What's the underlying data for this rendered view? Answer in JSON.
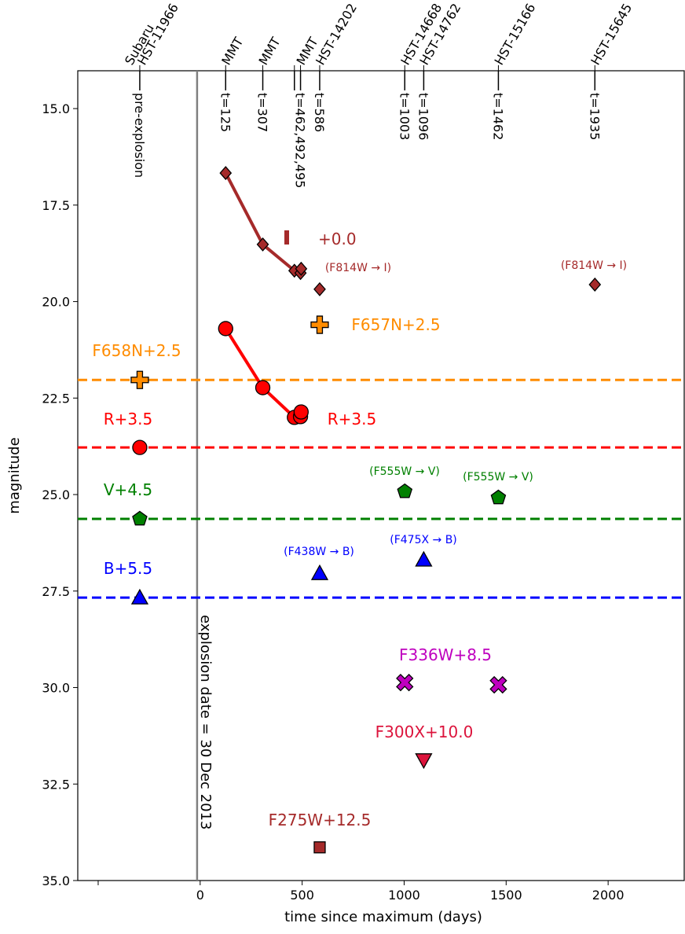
{
  "chart_data": {
    "type": "scatter",
    "xlabel": "time since maximum (days)",
    "ylabel": "magnitude",
    "xlim": [
      -600,
      2373
    ],
    "ylim": [
      14.02,
      35
    ],
    "y_inverted": true,
    "xticks": [
      {
        "value": -500,
        "label": null
      },
      0,
      500,
      1000,
      1500,
      2000
    ],
    "yticks": [
      {
        "value": 15,
        "label": "15.0"
      },
      17.5,
      {
        "value": 20,
        "label": "20.0"
      },
      22.5,
      {
        "value": 25,
        "label": "25.0"
      },
      27.5,
      {
        "value": 30,
        "label": "30.0"
      },
      32.5,
      {
        "value": 35,
        "label": "35.0"
      }
    ],
    "top_ticks": [
      {
        "value": -296,
        "labels": [
          "Subaru",
          "HST-11966"
        ],
        "epoch": "pre-explosion"
      },
      {
        "value": 125,
        "labels": [
          "MMT"
        ],
        "epoch": "t=125"
      },
      {
        "value": 307,
        "labels": [
          "MMT"
        ],
        "epoch": "t=307"
      },
      {
        "value": 462
      },
      {
        "value": 492,
        "labels": [
          "MMT"
        ],
        "epoch": "t=462,492,495"
      },
      {
        "value": 586,
        "labels": [
          "HST-14202"
        ],
        "epoch": "t=586"
      },
      {
        "value": 1003,
        "labels": [
          "HST-14668"
        ],
        "epoch": "t=1003"
      },
      {
        "value": 1096,
        "labels": [
          "HST-14762"
        ],
        "epoch": "t=1096"
      },
      {
        "value": 1462,
        "labels": [
          "HST-15166"
        ],
        "epoch": "t=1462"
      },
      {
        "value": 1935,
        "labels": [
          "HST-15645"
        ],
        "epoch": "t=1935"
      }
    ],
    "explosion": {
      "x": -15,
      "label": "explosion date = 30 Dec 2013",
      "color": "#808080"
    },
    "series": [
      {
        "color": "#a52a2a",
        "marker": "diamond",
        "line": true,
        "x": [
          125,
          307,
          462,
          492,
          495
        ],
        "values": [
          16.67,
          18.52,
          19.2,
          19.26,
          19.15
        ]
      },
      {
        "color": "#a52a2a",
        "marker": "diamond",
        "x": [
          586,
          1935
        ],
        "values": [
          19.68,
          19.56
        ]
      },
      {
        "color": "#ff0000",
        "marker": "circle",
        "line": true,
        "x": [
          125,
          307,
          462,
          492,
          495
        ],
        "values": [
          20.7,
          22.23,
          23.0,
          22.98,
          22.86
        ]
      },
      {
        "color": "#ff8c00",
        "marker": "plus",
        "x": [
          586
        ],
        "values": [
          20.6
        ]
      },
      {
        "color": "#ff8c00",
        "marker": "plus",
        "hline": true,
        "x": [
          -296
        ],
        "values": [
          22.03
        ]
      },
      {
        "color": "#ff0000",
        "marker": "circle",
        "hline": true,
        "x": [
          -296
        ],
        "values": [
          23.78
        ]
      },
      {
        "color": "#008000",
        "marker": "pentagon",
        "hline": true,
        "x": [
          -296
        ],
        "values": [
          25.63
        ]
      },
      {
        "color": "#008000",
        "marker": "pentagon",
        "x": [
          1003,
          1462
        ],
        "values": [
          24.92,
          25.08
        ]
      },
      {
        "color": "#0000ff",
        "marker": "triangle-up",
        "hline": true,
        "x": [
          -296
        ],
        "values": [
          27.67
        ]
      },
      {
        "color": "#0000ff",
        "marker": "triangle-up",
        "x": [
          586,
          1096
        ],
        "values": [
          27.04,
          26.69
        ]
      },
      {
        "color": "#bf00bf",
        "marker": "x",
        "x": [
          1003,
          1462
        ],
        "values": [
          29.87,
          29.93
        ]
      },
      {
        "color": "#dc143c",
        "marker": "triangle-down",
        "x": [
          1096
        ],
        "values": [
          31.88
        ]
      },
      {
        "color": "#a52a2a",
        "marker": "square",
        "x": [
          586
        ],
        "values": [
          34.14
        ]
      }
    ],
    "annotations": [
      {
        "text": "+0.0",
        "color": "#a52a2a"
      },
      {
        "text": "(F814W → I)",
        "color": "#a52a2a"
      },
      {
        "text": "(F814W → I)",
        "color": "#a52a2a"
      },
      {
        "text": "F658N+2.5",
        "color": "#ff8c00"
      },
      {
        "text": "F657N+2.5",
        "color": "#ff8c00"
      },
      {
        "text": "R+3.5",
        "color": "#ff0000"
      },
      {
        "text": "R+3.5",
        "color": "#ff0000"
      },
      {
        "text": "V+4.5",
        "color": "#008000"
      },
      {
        "text": "(F555W → V)",
        "color": "#008000"
      },
      {
        "text": "(F555W → V)",
        "color": "#008000"
      },
      {
        "text": "B+5.5",
        "color": "#0000ff"
      },
      {
        "text": "(F438W → B)",
        "color": "#0000ff"
      },
      {
        "text": "(F475X → B)",
        "color": "#0000ff"
      },
      {
        "text": "F336W+8.5",
        "color": "#bf00bf"
      },
      {
        "text": "F300X+10.0",
        "color": "#dc143c"
      },
      {
        "text": "F275W+12.5",
        "color": "#a52a2a"
      }
    ]
  }
}
